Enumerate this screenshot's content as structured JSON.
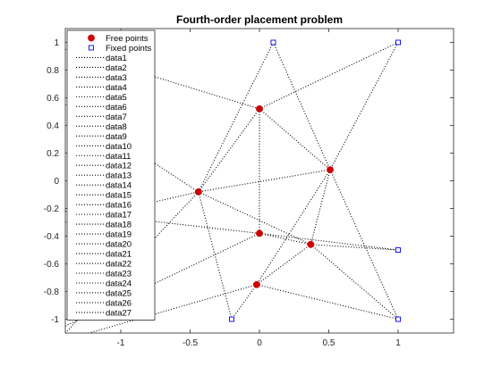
{
  "chart_data": {
    "type": "scatter",
    "title": "Fourth-order placement problem",
    "xlabel": "",
    "ylabel": "",
    "xlim": [
      -1.4,
      1.4
    ],
    "ylim": [
      -1.1,
      1.1
    ],
    "xticks": [
      -1,
      -0.5,
      0,
      0.5,
      1
    ],
    "xtick_labels": [
      "-1",
      "-0.5",
      "0",
      "0.5",
      "1"
    ],
    "yticks": [
      1,
      0.8,
      0.6,
      0.4,
      0.2,
      0,
      -0.2,
      -0.4,
      -0.6,
      -0.8,
      -1
    ],
    "ytick_labels": [
      "1",
      "0.8",
      "0.6",
      "0.4",
      "0.2",
      "0",
      "-0.2",
      "-0.4",
      "-0.6",
      "-0.8",
      "-1"
    ],
    "grid": false,
    "legend_position": "top-left",
    "series": [
      {
        "name": "Free points",
        "marker": "filled-circle",
        "color": "#cc0000",
        "points": [
          [
            0.0,
            0.52
          ],
          [
            0.51,
            0.08
          ],
          [
            -0.44,
            -0.08
          ],
          [
            0.0,
            -0.38
          ],
          [
            0.37,
            -0.46
          ],
          [
            -0.02,
            -0.75
          ]
        ]
      },
      {
        "name": "Fixed points",
        "marker": "open-square",
        "color": "#0000ff",
        "points": [
          [
            0.1,
            1.0
          ],
          [
            1.0,
            1.0
          ],
          [
            1.0,
            -0.5
          ],
          [
            1.0,
            -1.0
          ],
          [
            -0.2,
            -1.0
          ]
        ]
      }
    ],
    "segments": {
      "color": "#000000",
      "style": "dotted",
      "lines": [
        {
          "name": "data1",
          "from": [
            -1.4,
            0.95
          ],
          "to": [
            0.0,
            0.52
          ]
        },
        {
          "name": "data2",
          "from": [
            0.0,
            0.52
          ],
          "to": [
            1.0,
            1.0
          ]
        },
        {
          "name": "data3",
          "from": [
            0.0,
            0.52
          ],
          "to": [
            0.51,
            0.08
          ]
        },
        {
          "name": "data4",
          "from": [
            0.0,
            0.52
          ],
          "to": [
            -0.44,
            -0.08
          ]
        },
        {
          "name": "data5",
          "from": [
            0.0,
            0.52
          ],
          "to": [
            0.0,
            -0.38
          ]
        },
        {
          "name": "data6",
          "from": [
            0.1,
            1.0
          ],
          "to": [
            -0.44,
            -0.08
          ]
        },
        {
          "name": "data7",
          "from": [
            0.1,
            1.0
          ],
          "to": [
            0.51,
            0.08
          ]
        },
        {
          "name": "data8",
          "from": [
            1.0,
            1.0
          ],
          "to": [
            0.51,
            0.08
          ]
        },
        {
          "name": "data9",
          "from": [
            0.51,
            0.08
          ],
          "to": [
            -0.44,
            -0.08
          ]
        },
        {
          "name": "data10",
          "from": [
            0.51,
            0.08
          ],
          "to": [
            0.37,
            -0.46
          ]
        },
        {
          "name": "data11",
          "from": [
            0.51,
            0.08
          ],
          "to": [
            1.0,
            -1.0
          ]
        },
        {
          "name": "data12",
          "from": [
            0.51,
            0.08
          ],
          "to": [
            -0.02,
            -0.75
          ]
        },
        {
          "name": "data13",
          "from": [
            -0.44,
            -0.08
          ],
          "to": [
            0.37,
            -0.46
          ]
        },
        {
          "name": "data14",
          "from": [
            -0.44,
            -0.08
          ],
          "to": [
            -0.2,
            -1.0
          ]
        },
        {
          "name": "data15",
          "from": [
            -1.4,
            -0.3
          ],
          "to": [
            -0.44,
            -0.08
          ]
        },
        {
          "name": "data16",
          "from": [
            -1.4,
            -1.1
          ],
          "to": [
            -0.44,
            -0.08
          ]
        },
        {
          "name": "data17",
          "from": [
            -1.4,
            0.55
          ],
          "to": [
            -0.44,
            -0.08
          ]
        },
        {
          "name": "data18",
          "from": [
            -1.4,
            -0.22
          ],
          "to": [
            0.0,
            -0.38
          ]
        },
        {
          "name": "data19",
          "from": [
            0.0,
            -0.38
          ],
          "to": [
            1.0,
            -0.5
          ]
        },
        {
          "name": "data20",
          "from": [
            0.0,
            -0.38
          ],
          "to": [
            0.37,
            -0.46
          ]
        },
        {
          "name": "data21",
          "from": [
            -1.4,
            -1.05
          ],
          "to": [
            0.0,
            -0.38
          ]
        },
        {
          "name": "data22",
          "from": [
            0.37,
            -0.46
          ],
          "to": [
            1.0,
            -0.5
          ]
        },
        {
          "name": "data23",
          "from": [
            0.37,
            -0.46
          ],
          "to": [
            1.0,
            -1.0
          ]
        },
        {
          "name": "data24",
          "from": [
            -0.02,
            -0.75
          ],
          "to": [
            0.37,
            -0.46
          ]
        },
        {
          "name": "data25",
          "from": [
            -0.02,
            -0.75
          ],
          "to": [
            1.0,
            -1.0
          ]
        },
        {
          "name": "data26",
          "from": [
            -0.02,
            -0.75
          ],
          "to": [
            -0.2,
            -1.0
          ]
        },
        {
          "name": "data27",
          "from": [
            -1.4,
            -1.15
          ],
          "to": [
            -0.02,
            -0.75
          ]
        }
      ]
    }
  }
}
